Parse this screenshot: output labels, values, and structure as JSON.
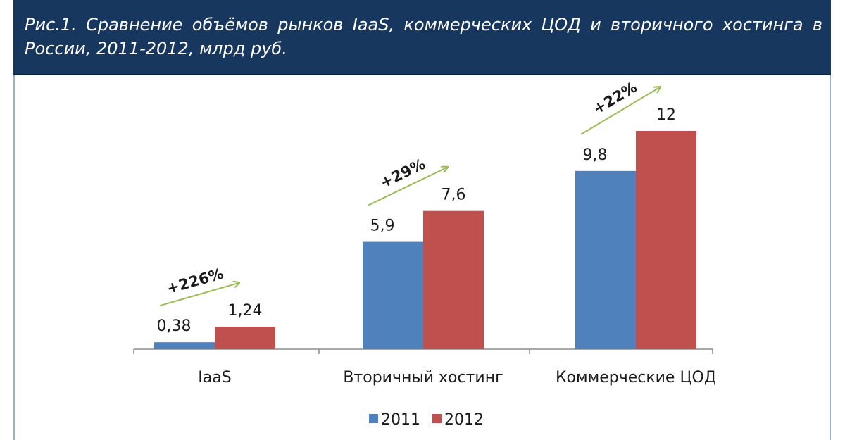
{
  "title": "Рис.1. Сравнение объёмов рынков IaaS, коммерческих ЦОД и вторичного хостинга в России, 2011-2012, млрд руб.",
  "colors": {
    "header_bg": "#17375e",
    "series_2011": "#4f81bd",
    "series_2012": "#c0504d",
    "growth_arrow": "#9bbb59"
  },
  "chart_data": {
    "type": "bar",
    "categories": [
      "IaaS",
      "Вторичный хостинг",
      "Коммерческие ЦОД"
    ],
    "series": [
      {
        "name": "2011",
        "values": [
          0.38,
          5.9,
          9.8
        ],
        "labels": [
          "0,38",
          "5,9",
          "9,8"
        ]
      },
      {
        "name": "2012",
        "values": [
          1.24,
          7.6,
          12
        ],
        "labels": [
          "1,24",
          "7,6",
          "12"
        ]
      }
    ],
    "annotations": [
      "+226%",
      "+29%",
      "+22%"
    ],
    "ylim": [
      0,
      12
    ],
    "grid": false,
    "legend": "bottom"
  }
}
